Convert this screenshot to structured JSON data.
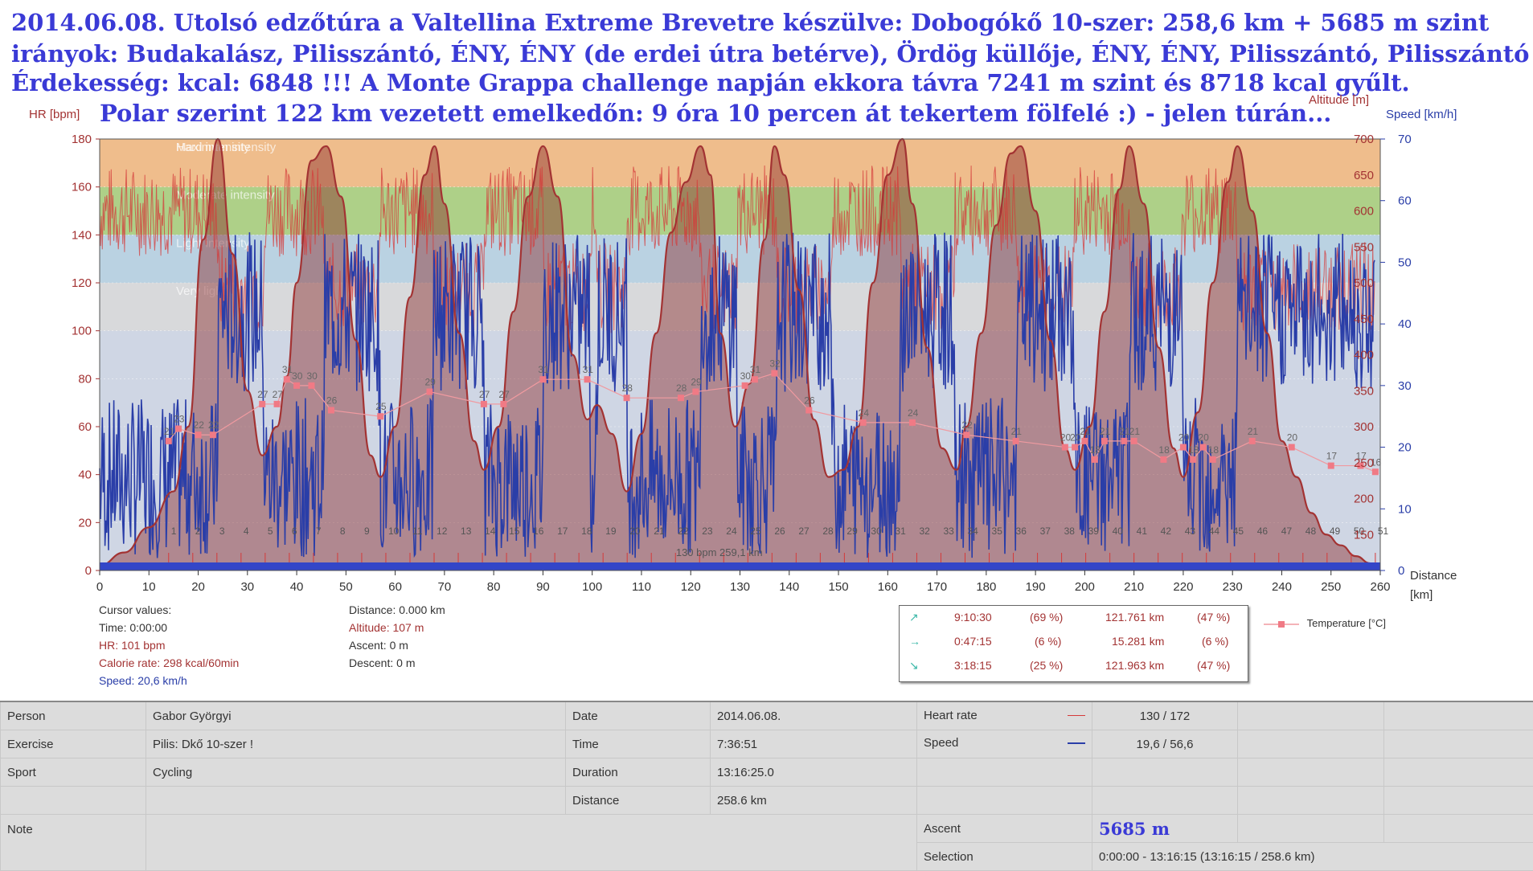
{
  "headline": {
    "line1": "2014.06.08. Utolsó edzőtúra a Valtellina Extreme Brevetre készülve: Dobogókő 10-szer: 258,6 km + 5685 m szint",
    "line2": "irányok: Budakalász, Pilisszántó, ÉNY, ÉNY (de erdei útra betérve), Ördög küllője, ÉNY, ÉNY, Pilisszántó, Pilisszántó :)",
    "line3": "Érdekesség: kcal: 6848 !!!  A Monte Grappa challenge napján ekkora távra 7241 m szint és 8718 kcal gyűlt.",
    "line4": "Polar szerint 122 km vezetett emelkedőn: 9 óra 10 percen át tekertem fölfelé :)  - jelen túrán..."
  },
  "colors": {
    "hr": "#d43a3a",
    "altitude": "#a33333",
    "speed": "#2a3ea8",
    "temperature": "#f09aa0",
    "headline": "#3a3ad6"
  },
  "chart_data": {
    "type": "line",
    "x_label": "Distance",
    "x_unit": "[km]",
    "xlim": [
      0,
      260
    ],
    "x_ticks": [
      0,
      10,
      20,
      30,
      40,
      50,
      60,
      70,
      80,
      90,
      100,
      110,
      120,
      130,
      140,
      150,
      160,
      170,
      180,
      190,
      200,
      210,
      220,
      230,
      240,
      250,
      260
    ],
    "y_left": {
      "label": "HR [bpm]",
      "lim": [
        0,
        180
      ],
      "ticks": [
        0,
        20,
        40,
        60,
        80,
        100,
        120,
        140,
        160,
        180
      ]
    },
    "y_altitude": {
      "label": "Altitude [m]",
      "lim": [
        100,
        700
      ],
      "ticks": [
        150,
        200,
        250,
        300,
        350,
        400,
        450,
        500,
        550,
        600,
        650,
        700
      ]
    },
    "y_right": {
      "label": "Speed [km/h]",
      "lim": [
        0,
        70
      ],
      "ticks": [
        0,
        10,
        20,
        30,
        40,
        50,
        60,
        70
      ]
    },
    "zones": [
      {
        "name": "Maximum intensity",
        "from": 180,
        "to": 180,
        "color": "#f3c3c0"
      },
      {
        "name": "Hard intensity",
        "from": 160,
        "to": 180,
        "color": "#f4b87c"
      },
      {
        "name": "Moderate intensity",
        "from": 140,
        "to": 160,
        "color": "#a8cf78"
      },
      {
        "name": "Light intensity",
        "from": 120,
        "to": 140,
        "color": "#b6d1e2"
      },
      {
        "name": "Very light",
        "from": 100,
        "to": 120,
        "color": "#d9d9d9"
      },
      {
        "name": "",
        "from": 0,
        "to": 100,
        "color": "#cfd6e4"
      }
    ],
    "altitude_series": {
      "name": "Altitude",
      "distance": [
        0,
        5,
        10,
        15,
        18,
        21,
        24,
        27,
        30,
        33,
        36,
        38,
        40,
        43,
        46,
        49,
        52,
        55,
        57,
        60,
        63,
        66,
        68,
        70,
        73,
        76,
        78,
        81,
        84,
        87,
        90,
        93,
        96,
        99,
        101,
        104,
        107,
        110,
        113,
        116,
        119,
        122,
        124,
        126,
        129,
        132,
        135,
        137,
        139,
        142,
        145,
        148,
        151,
        154,
        157,
        160,
        163,
        165,
        168,
        171,
        174,
        176,
        179,
        182,
        185,
        187,
        190,
        193,
        196,
        198,
        201,
        204,
        207,
        209,
        212,
        215,
        218,
        220,
        223,
        226,
        229,
        231,
        234,
        237,
        240,
        243,
        246,
        249,
        252,
        255,
        258,
        260
      ],
      "altitude": [
        107,
        125,
        160,
        210,
        300,
        560,
        700,
        540,
        350,
        260,
        300,
        370,
        500,
        670,
        690,
        620,
        420,
        260,
        230,
        300,
        480,
        650,
        690,
        610,
        430,
        280,
        240,
        300,
        460,
        620,
        690,
        620,
        400,
        310,
        330,
        290,
        210,
        290,
        430,
        570,
        640,
        690,
        650,
        430,
        300,
        360,
        560,
        690,
        650,
        490,
        310,
        230,
        240,
        300,
        500,
        650,
        700,
        610,
        410,
        270,
        240,
        300,
        430,
        580,
        680,
        690,
        600,
        420,
        270,
        240,
        300,
        460,
        630,
        690,
        610,
        410,
        270,
        230,
        320,
        500,
        640,
        690,
        600,
        430,
        280,
        230,
        180,
        150,
        135,
        120,
        110,
        105
      ]
    },
    "temperature_series": {
      "name": "Temperature [°C]",
      "distance": [
        14,
        16,
        20,
        23,
        33,
        36,
        38,
        40,
        43,
        47,
        57,
        67,
        78,
        82,
        90,
        99,
        107,
        118,
        121,
        131,
        133,
        137,
        144,
        155,
        165,
        176,
        186,
        196,
        198,
        200,
        202,
        204,
        208,
        210,
        216,
        220,
        222,
        224,
        226,
        234,
        242,
        250,
        256,
        259
      ],
      "values": [
        21,
        23,
        22,
        22,
        27,
        27,
        31,
        30,
        30,
        26,
        25,
        29,
        27,
        27,
        31,
        31,
        28,
        28,
        29,
        30,
        31,
        32,
        26,
        24,
        24,
        22,
        21,
        20,
        20,
        21,
        18,
        21,
        21,
        21,
        18,
        20,
        18,
        20,
        18,
        21,
        20,
        17,
        17,
        16
      ]
    },
    "lap_labels": [
      "1",
      "2",
      "3",
      "4",
      "5",
      "6",
      "7",
      "8",
      "9",
      "10",
      "11",
      "12",
      "13",
      "14",
      "15",
      "16",
      "17",
      "18",
      "19",
      "20",
      "21",
      "22",
      "23",
      "24",
      "25",
      "26",
      "27",
      "28",
      "29",
      "30",
      "31",
      "32",
      "33",
      "34",
      "35",
      "36",
      "37",
      "38",
      "39",
      "40",
      "41",
      "42",
      "43",
      "44",
      "45",
      "46",
      "47",
      "48",
      "49",
      "50",
      "51"
    ],
    "hr_threshold_label": "130 bpm  259,1 km",
    "legend": "Temperature [°C]"
  },
  "cursor": {
    "heading": "Cursor values:",
    "time": "Time: 0:00:00",
    "hr": "HR: 101 bpm",
    "calorie": "Calorie rate: 298 kcal/60min",
    "speed": "Speed: 20,6 km/h",
    "distance": "Distance: 0.000 km",
    "altitude": "Altitude: 107 m",
    "ascent": "Ascent: 0 m",
    "descent": "Descent: 0 m"
  },
  "stats": [
    {
      "icon": "↗",
      "time": "9:10:30",
      "pct": "(69 %)",
      "dist": "121.761 km",
      "dpct": "(47 %)"
    },
    {
      "icon": "→",
      "time": "0:47:15",
      "pct": "(6 %)",
      "dist": "15.281 km",
      "dpct": "(6 %)"
    },
    {
      "icon": "↘",
      "time": "3:18:15",
      "pct": "(25 %)",
      "dist": "121.963 km",
      "dpct": "(47 %)"
    }
  ],
  "info": {
    "person_label": "Person",
    "person": "Gabor Györgyi",
    "exercise_label": "Exercise",
    "exercise": "Pilis: Dkő 10-szer !",
    "sport_label": "Sport",
    "sport": "Cycling",
    "note_label": "Note",
    "date_label": "Date",
    "date": "2014.06.08.",
    "time_label": "Time",
    "time": "7:36:51",
    "duration_label": "Duration",
    "duration": "13:16:25.0",
    "distance_label": "Distance",
    "distance": "258.6 km",
    "hr_label": "Heart rate",
    "hr": "130 / 172",
    "speed_label": "Speed",
    "speed": "19,6 / 56,6",
    "ascent_label": "Ascent",
    "ascent": "5685 m",
    "selection_label": "Selection",
    "selection": "0:00:00 - 13:16:15 (13:16:15 / 258.6 km)"
  }
}
